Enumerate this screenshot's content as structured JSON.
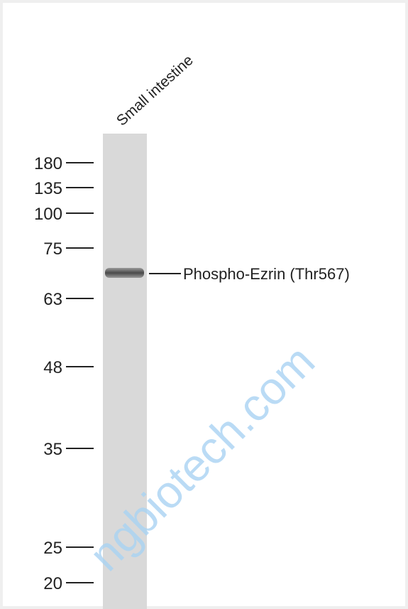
{
  "figure": {
    "lane_label": "Small intestine",
    "markers": [
      "180",
      "135",
      "100",
      "75",
      "63",
      "48",
      "35",
      "25",
      "20"
    ],
    "band_label": "Phospho-Ezrin (Thr567)",
    "watermark": "ngbiotech.com"
  }
}
